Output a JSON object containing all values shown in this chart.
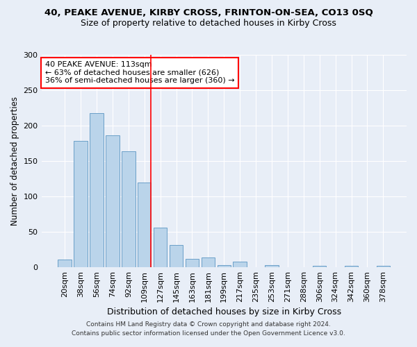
{
  "title": "40, PEAKE AVENUE, KIRBY CROSS, FRINTON-ON-SEA, CO13 0SQ",
  "subtitle": "Size of property relative to detached houses in Kirby Cross",
  "xlabel_bottom": "Distribution of detached houses by size in Kirby Cross",
  "ylabel": "Number of detached properties",
  "categories": [
    "20sqm",
    "38sqm",
    "56sqm",
    "74sqm",
    "92sqm",
    "109sqm",
    "127sqm",
    "145sqm",
    "163sqm",
    "181sqm",
    "199sqm",
    "217sqm",
    "235sqm",
    "253sqm",
    "271sqm",
    "288sqm",
    "306sqm",
    "324sqm",
    "342sqm",
    "360sqm",
    "378sqm"
  ],
  "values": [
    11,
    178,
    218,
    186,
    164,
    120,
    56,
    31,
    12,
    14,
    3,
    8,
    0,
    3,
    0,
    0,
    2,
    0,
    2,
    0,
    2
  ],
  "bar_color": "#bad4ea",
  "bar_edge_color": "#6a9fc8",
  "vline_x": 5.42,
  "vline_color": "red",
  "annotation_text": "40 PEAKE AVENUE: 113sqm\n← 63% of detached houses are smaller (626)\n36% of semi-detached houses are larger (360) →",
  "annotation_box_color": "white",
  "annotation_box_edge": "red",
  "ylim": [
    0,
    300
  ],
  "yticks": [
    0,
    50,
    100,
    150,
    200,
    250,
    300
  ],
  "footer1": "Contains HM Land Registry data © Crown copyright and database right 2024.",
  "footer2": "Contains public sector information licensed under the Open Government Licence v3.0.",
  "bg_color": "#e8eef7",
  "plot_bg_color": "#e8eef7",
  "title_fontsize": 9.5,
  "subtitle_fontsize": 9.0,
  "ylabel_fontsize": 8.5,
  "xlabel_fontsize": 9.0,
  "tick_fontsize": 8.0,
  "annot_fontsize": 8.0,
  "footer_fontsize": 6.5
}
